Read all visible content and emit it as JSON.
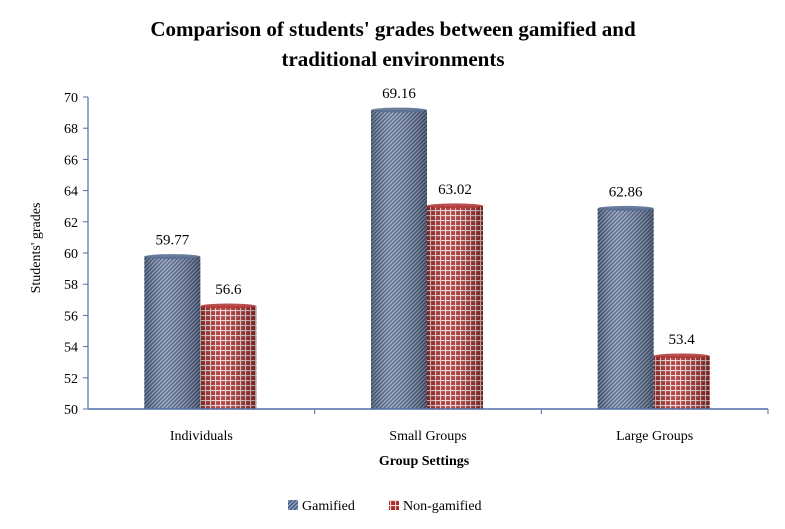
{
  "chart_data": {
    "type": "bar",
    "title_line1": "Comparison of students' grades between gamified and",
    "title_line2": "traditional environments",
    "xlabel": "Group Settings",
    "ylabel": "Students' grades",
    "categories": [
      "Individuals",
      "Small Groups",
      "Large Groups"
    ],
    "series": [
      {
        "name": "Gamified",
        "values": [
          59.77,
          69.16,
          62.86
        ],
        "color": "#5a6f94"
      },
      {
        "name": "Non-gamified",
        "values": [
          56.6,
          63.02,
          53.4
        ],
        "color": "#b23b3b"
      }
    ],
    "data_labels": [
      [
        "59.77",
        "69.16",
        "62.86"
      ],
      [
        "56.6",
        "63.02",
        "53.4"
      ]
    ],
    "ylim": [
      50,
      70
    ],
    "yticks": [
      50,
      52,
      54,
      56,
      58,
      60,
      62,
      64,
      66,
      68,
      70
    ],
    "grid": false,
    "legend_position": "bottom",
    "axis_color": "#4f6fa8"
  }
}
